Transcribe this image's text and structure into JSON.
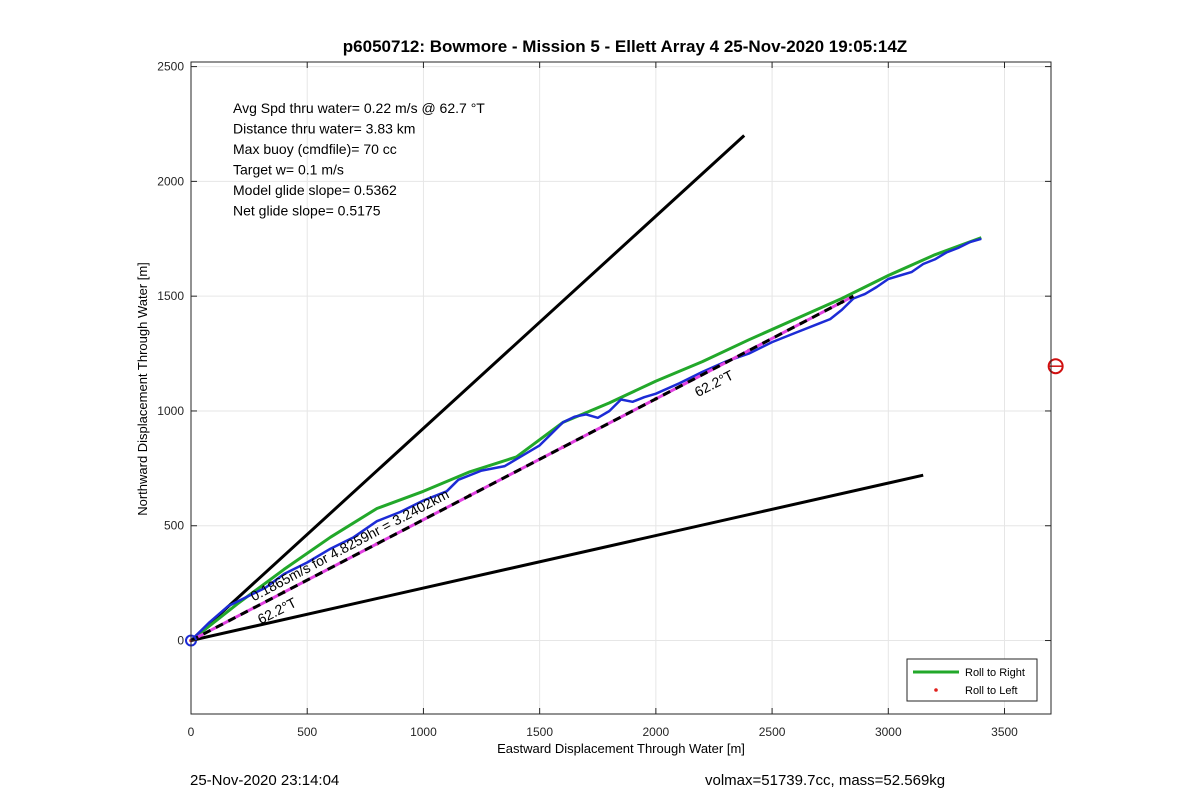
{
  "chart_data": {
    "type": "line",
    "title": "p6050712: Bowmore - Mission 5 - Ellett Array 4 25-Nov-2020 19:05:14Z",
    "xlabel": "Eastward Displacement Through Water [m]",
    "ylabel": "Northward Displacement Through Water [m]",
    "xlim": [
      0,
      3700
    ],
    "ylim": [
      -320,
      2520
    ],
    "xticks": [
      0,
      500,
      1000,
      1500,
      2000,
      2500,
      3000,
      3500
    ],
    "yticks": [
      0,
      500,
      1000,
      1500,
      2000,
      2500
    ],
    "grid": true,
    "info_lines": [
      "Avg Spd thru water=  0.22 m/s @  62.7 °T",
      "Distance thru water=  3.83 km",
      "Max buoy (cmdfile)= 70 cc",
      "Target w= 0.1 m/s",
      "Model glide slope= 0.5362",
      "Net glide slope= 0.5175"
    ],
    "series": [
      {
        "name": "Roll to Right",
        "color": "#22a82a",
        "style": "solid",
        "x": [
          0,
          200,
          400,
          600,
          800,
          1000,
          1200,
          1400,
          1600,
          1800,
          2000,
          2200,
          2400,
          2600,
          2800,
          3000,
          3200,
          3400
        ],
        "y": [
          0,
          160,
          310,
          450,
          575,
          650,
          735,
          800,
          950,
          1035,
          1130,
          1215,
          1310,
          1400,
          1490,
          1590,
          1680,
          1755
        ]
      },
      {
        "name": "Roll to Left",
        "color": "#e0201c",
        "style": "dots",
        "x": [
          0,
          400,
          800,
          1200,
          1600,
          2000,
          2400,
          2800
        ],
        "y": [
          0,
          211,
          421,
          632,
          842,
          1053,
          1263,
          1474
        ]
      },
      {
        "color": "#1c2bd6",
        "style": "solid",
        "x": [
          0,
          80,
          160,
          240,
          320,
          400,
          500,
          600,
          700,
          800,
          900,
          1000,
          1100,
          1150,
          1250,
          1350,
          1400,
          1500,
          1550,
          1600,
          1650,
          1700,
          1750,
          1800,
          1850,
          1900,
          1950,
          2000,
          2100,
          2200,
          2300,
          2400,
          2500,
          2600,
          2700,
          2750,
          2800,
          2850,
          2900,
          2950,
          3000,
          3050,
          3100,
          3150,
          3200,
          3250,
          3300,
          3350,
          3400
        ],
        "y": [
          0,
          80,
          150,
          190,
          230,
          290,
          340,
          400,
          450,
          520,
          560,
          610,
          650,
          700,
          740,
          760,
          790,
          850,
          900,
          950,
          975,
          985,
          970,
          1000,
          1050,
          1040,
          1060,
          1075,
          1120,
          1170,
          1215,
          1250,
          1300,
          1340,
          1380,
          1400,
          1440,
          1490,
          1510,
          1540,
          1575,
          1590,
          1605,
          1640,
          1660,
          1690,
          1710,
          1735,
          1750
        ]
      },
      {
        "color": "#e040e0",
        "style": "dashed-black",
        "x": [
          0,
          2850
        ],
        "y": [
          0,
          1500
        ]
      }
    ],
    "reference_lines": [
      {
        "x": [
          0,
          2380
        ],
        "y": [
          0,
          2200
        ]
      },
      {
        "x": [
          0,
          3150
        ],
        "y": [
          0,
          720
        ]
      }
    ],
    "annotations": [
      {
        "text": "62.2°T",
        "x": 2180,
        "y": 1060,
        "angle": -27
      },
      {
        "text": "62.2°T",
        "x": 300,
        "y": 70,
        "angle": -27
      },
      {
        "text": "0.1865m/s for 4.8259hr = 3.2402km",
        "x": 270,
        "y": 170,
        "angle": -28
      }
    ],
    "start_marker": {
      "x": 0,
      "y": 0
    },
    "out_of_range_marker": {
      "x": 3720,
      "y": 1195,
      "color": "#d01010"
    },
    "legend": {
      "position": "bottom-right"
    }
  },
  "footer": {
    "left": "25-Nov-2020 23:14:04",
    "right": "volmax=51739.7cc, mass=52.569kg"
  }
}
